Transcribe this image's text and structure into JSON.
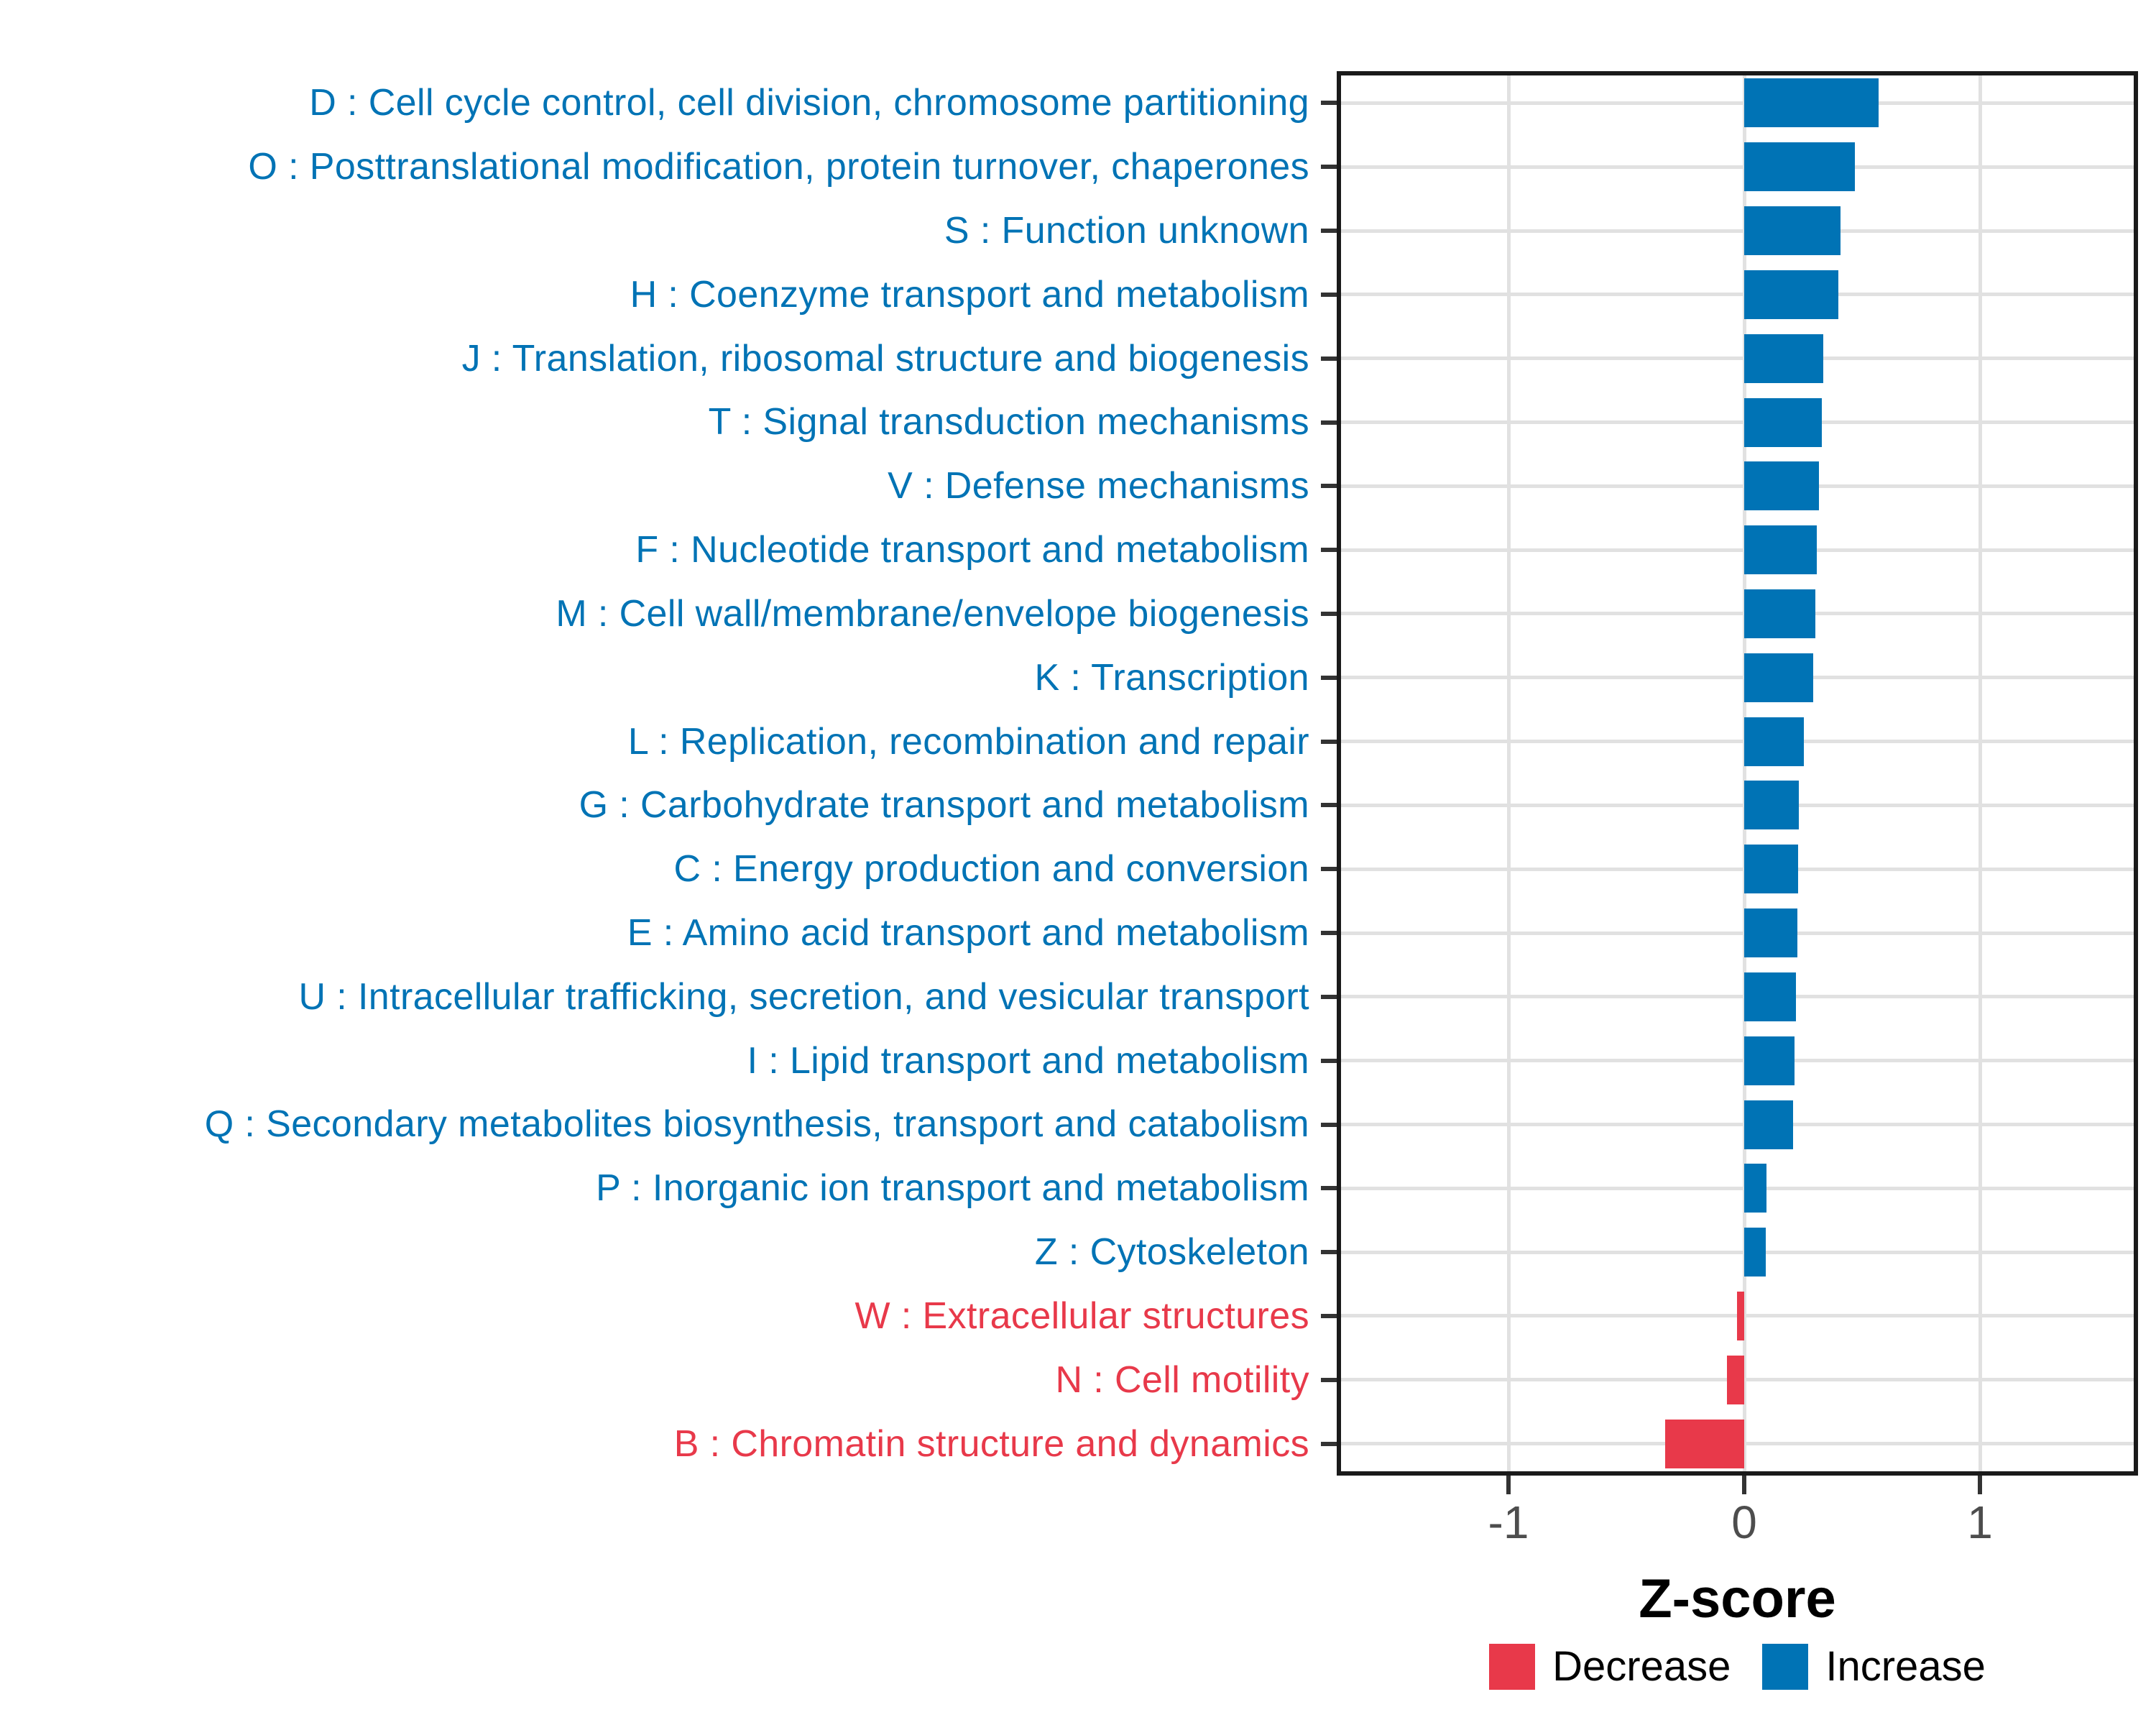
{
  "chart_data": {
    "type": "bar",
    "orientation": "horizontal",
    "title": "",
    "xlabel": "Z-score",
    "ylabel": "",
    "x_ticks": [
      -1,
      0,
      1
    ],
    "xlim": [
      -1.73,
      1.67
    ],
    "grid": "major-only",
    "legend_position": "bottom",
    "colors": {
      "increase": "#0073b5",
      "decrease": "#e8394a"
    },
    "legend": {
      "entries": [
        {
          "label": "Decrease",
          "direction": "decrease",
          "color": "#e8394a"
        },
        {
          "label": "Increase",
          "direction": "increase",
          "color": "#0073b5"
        }
      ]
    },
    "categories": [
      "D : Cell cycle control, cell division, chromosome partitioning",
      "O : Posttranslational modification, protein turnover, chaperones",
      "S : Function unknown",
      "H : Coenzyme transport and metabolism",
      "J : Translation, ribosomal structure and biogenesis",
      "T : Signal transduction mechanisms",
      "V : Defense mechanisms",
      "F : Nucleotide transport and metabolism",
      "M : Cell wall/membrane/envelope biogenesis",
      "K : Transcription",
      "L : Replication, recombination and repair",
      "G : Carbohydrate transport and metabolism",
      "C : Energy production and conversion",
      "E : Amino acid transport and metabolism",
      "U : Intracellular trafficking, secretion, and vesicular transport",
      "I : Lipid transport and metabolism",
      "Q : Secondary metabolites biosynthesis, transport and catabolism",
      "P : Inorganic ion transport and metabolism",
      "Z : Cytoskeleton",
      "W : Extracellular structures",
      "N : Cell motility",
      "B : Chromatin structure and dynamics"
    ],
    "values": [
      0.57,
      0.47,
      0.41,
      0.4,
      0.335,
      0.328,
      0.318,
      0.308,
      0.303,
      0.292,
      0.253,
      0.231,
      0.228,
      0.225,
      0.221,
      0.214,
      0.207,
      0.094,
      0.09,
      -0.031,
      -0.073,
      -0.335
    ],
    "directions": [
      "increase",
      "increase",
      "increase",
      "increase",
      "increase",
      "increase",
      "increase",
      "increase",
      "increase",
      "increase",
      "increase",
      "increase",
      "increase",
      "increase",
      "increase",
      "increase",
      "increase",
      "increase",
      "increase",
      "decrease",
      "decrease",
      "decrease"
    ]
  }
}
